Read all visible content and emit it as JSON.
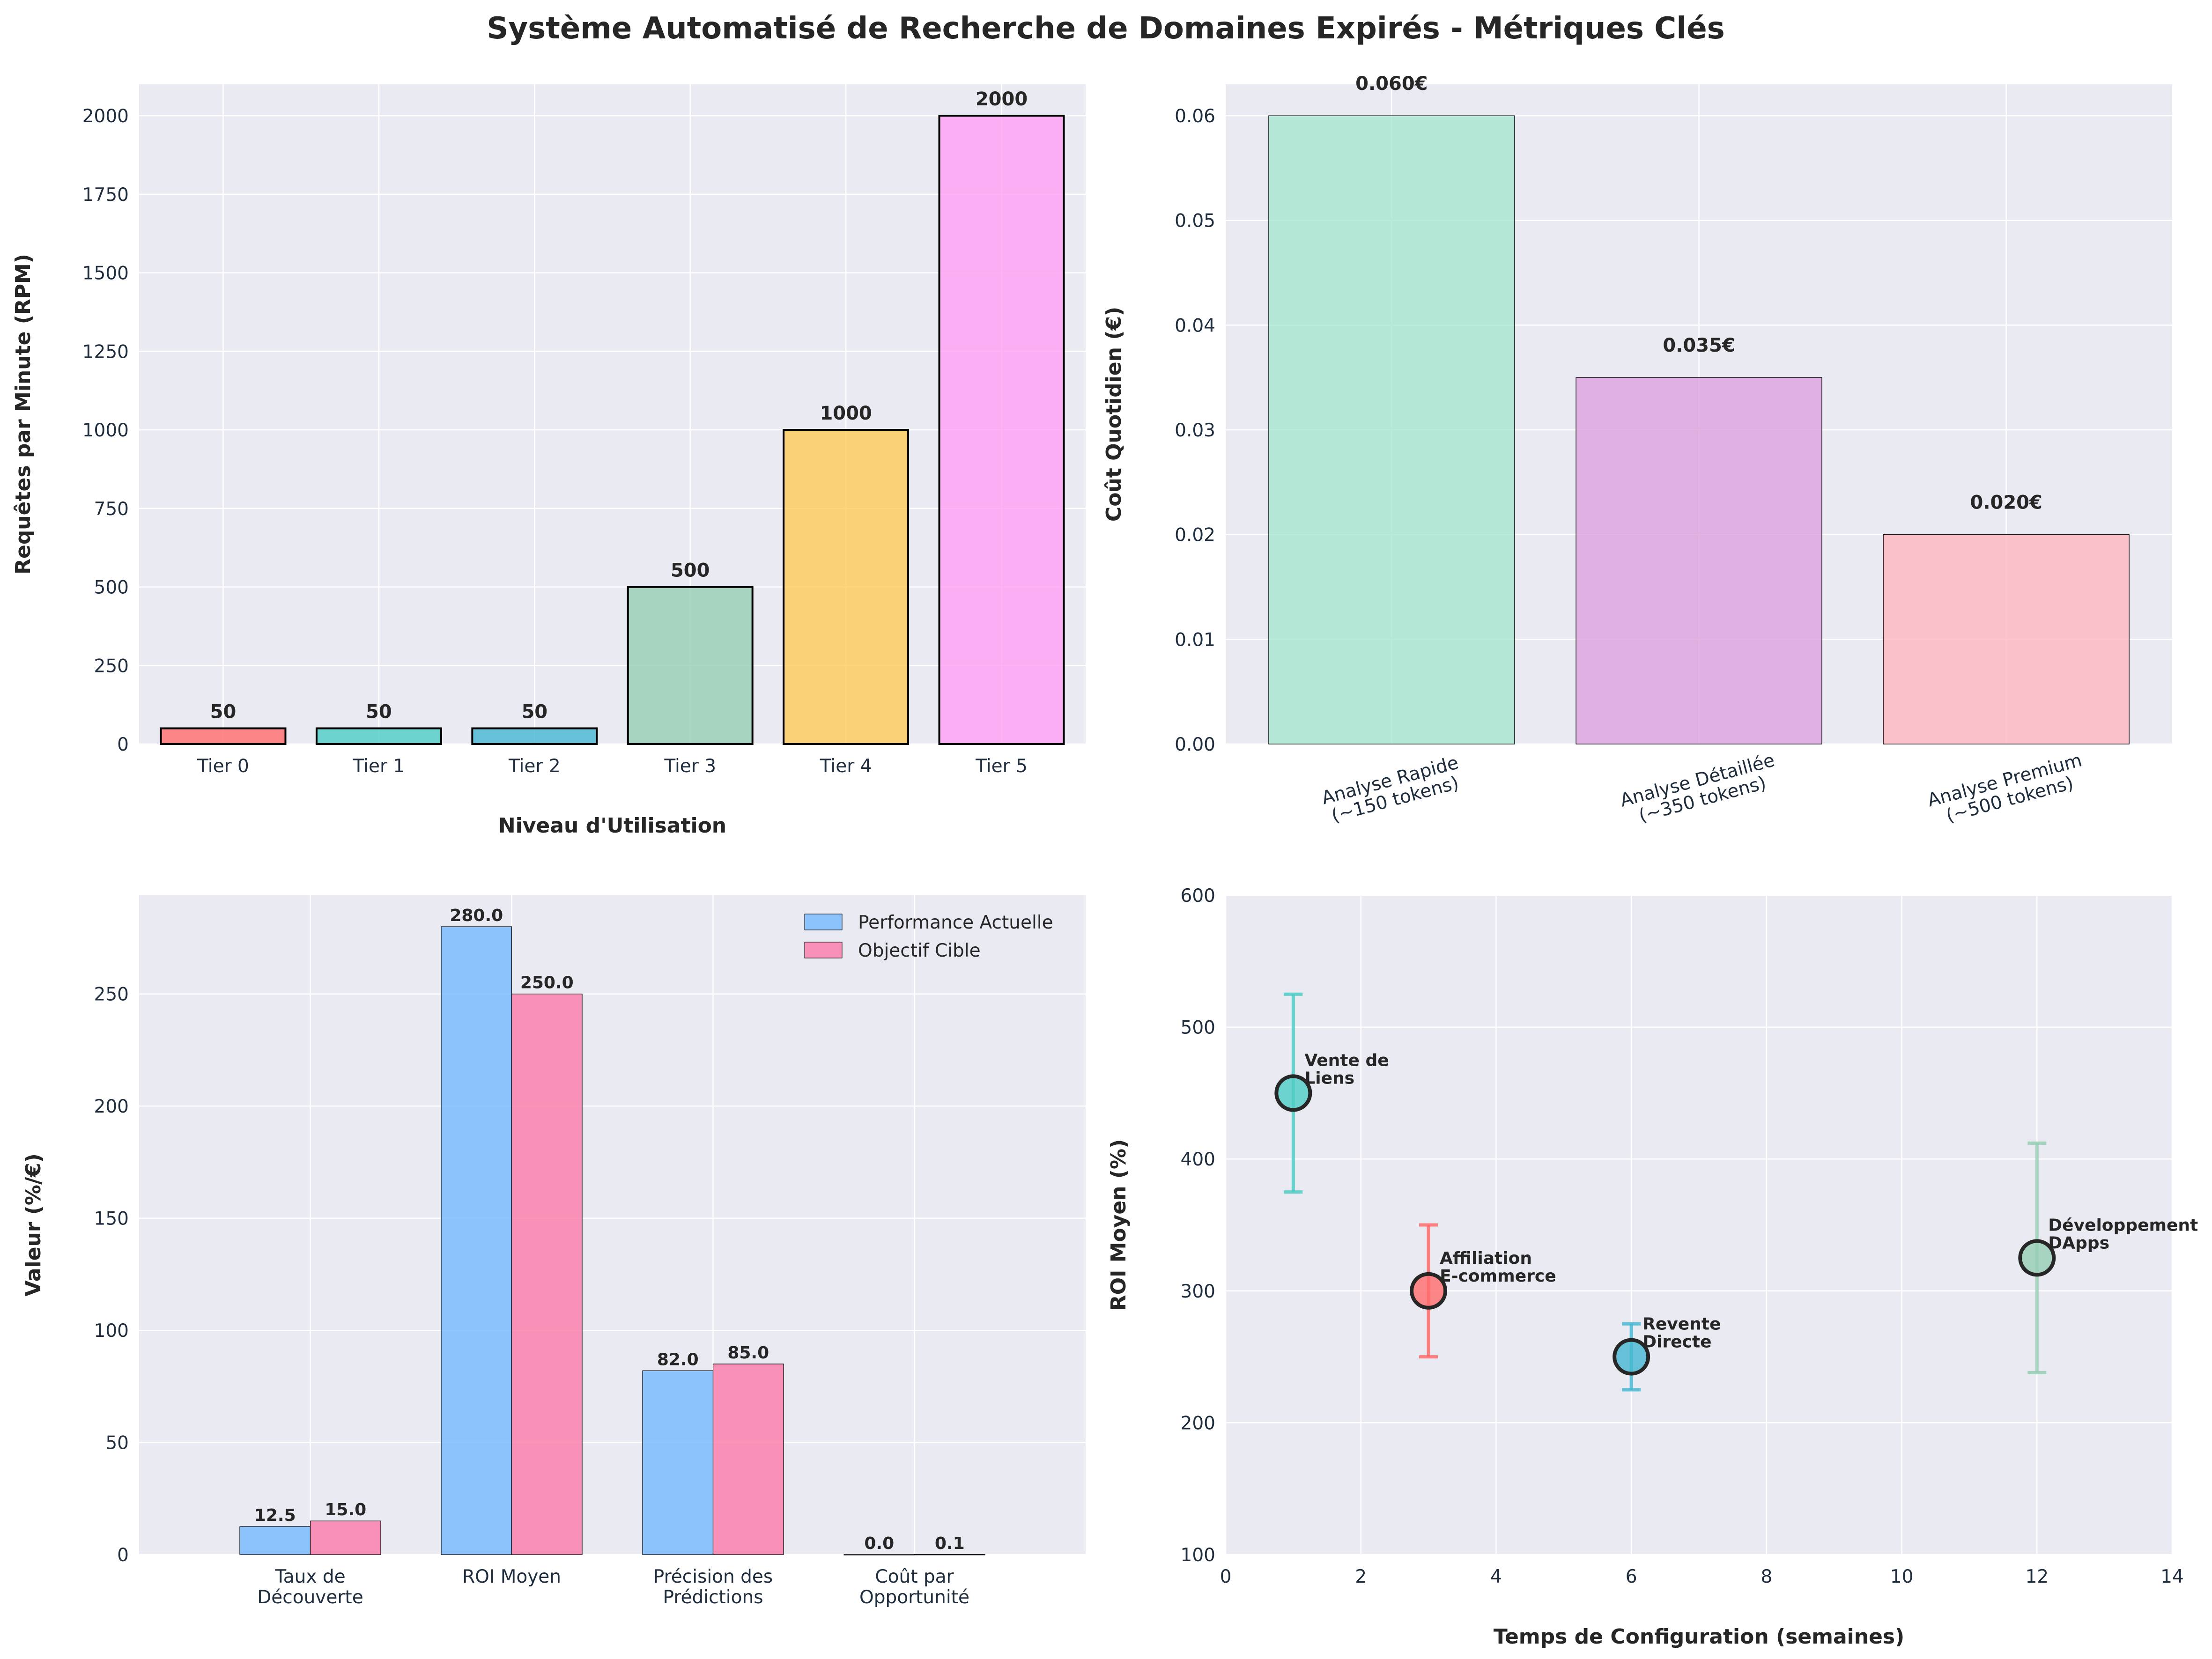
{
  "title": "Système Automatisé de Recherche de Domaines Expirés - Métriques Clés",
  "chart_data": [
    {
      "type": "bar",
      "categories": [
        "Tier 0",
        "Tier 1",
        "Tier 2",
        "Tier 3",
        "Tier 4",
        "Tier 5"
      ],
      "values": [
        50,
        50,
        50,
        500,
        1000,
        2000
      ],
      "value_labels": [
        "50",
        "50",
        "50",
        "500",
        "1000",
        "2000"
      ],
      "colors": [
        "#ff6b6b",
        "#4ecdc4",
        "#45b7d1",
        "#96ceb4",
        "#feca57",
        "#ff9ff3"
      ],
      "xlabel": "Niveau d'Utilisation",
      "ylabel": "Requêtes par Minute (RPM)",
      "ylim": [
        0,
        2100
      ],
      "yticks": [
        0,
        250,
        500,
        750,
        1000,
        1250,
        1500,
        1750,
        2000
      ],
      "grid": true
    },
    {
      "type": "bar",
      "categories": [
        "Analyse Rapide\n(~150 tokens)",
        "Analyse Détaillée\n(~350 tokens)",
        "Analyse Premium\n(~500 tokens)"
      ],
      "values": [
        0.06,
        0.035,
        0.02
      ],
      "value_labels": [
        "0.060€",
        "0.035€",
        "0.020€"
      ],
      "colors": [
        "#a8e6cf",
        "#dda0dd",
        "#ffb6c1"
      ],
      "xlabel": "",
      "ylabel": "Coût Quotidien (€)",
      "ylim": [
        0,
        0.063
      ],
      "yticks": [
        0.0,
        0.01,
        0.02,
        0.03,
        0.04,
        0.05,
        0.06
      ],
      "ytick_labels": [
        "0.00",
        "0.01",
        "0.02",
        "0.03",
        "0.04",
        "0.05",
        "0.06"
      ],
      "grid": true
    },
    {
      "type": "bar",
      "categories": [
        "Taux de\nDécouverte",
        "ROI Moyen",
        "Précision des\nPrédictions",
        "Coût par\nOpportunité"
      ],
      "series": [
        {
          "name": "Performance Actuelle",
          "values": [
            12.5,
            280.0,
            82.0,
            0.02
          ],
          "value_labels": [
            "12.5",
            "280.0",
            "82.0",
            "0.0"
          ],
          "color": "#74b9ff"
        },
        {
          "name": "Objectif Cible",
          "values": [
            15.0,
            250.0,
            85.0,
            0.05
          ],
          "value_labels": [
            "15.0",
            "250.0",
            "85.0",
            "0.1"
          ],
          "color": "#fd79a8"
        }
      ],
      "xlabel": "",
      "ylabel": "Valeur (%/€)",
      "ylim": [
        0,
        294
      ],
      "yticks": [
        0,
        50,
        100,
        150,
        200,
        250
      ],
      "legend": "top-right",
      "grid": true
    },
    {
      "type": "scatter",
      "points": [
        {
          "label": "Affiliation\nE-commerce",
          "x": 3,
          "y": 300,
          "err": 50,
          "color": "#ff6b6b"
        },
        {
          "label": "Vente de\nLiens",
          "x": 1,
          "y": 450,
          "err": 75,
          "color": "#4ecdc4"
        },
        {
          "label": "Revente\nDirecte",
          "x": 6,
          "y": 250,
          "err": 25,
          "color": "#45b7d1"
        },
        {
          "label": "Développement\nDApps",
          "x": 12,
          "y": 325,
          "err": 87,
          "color": "#96ceb4"
        }
      ],
      "xlabel": "Temps de Configuration (semaines)",
      "ylabel": "ROI Moyen (%)",
      "xlim": [
        0,
        14
      ],
      "ylim": [
        100,
        600
      ],
      "xticks": [
        0,
        2,
        4,
        6,
        8,
        10,
        12,
        14
      ],
      "yticks": [
        100,
        200,
        300,
        400,
        500,
        600
      ],
      "grid": true
    }
  ]
}
